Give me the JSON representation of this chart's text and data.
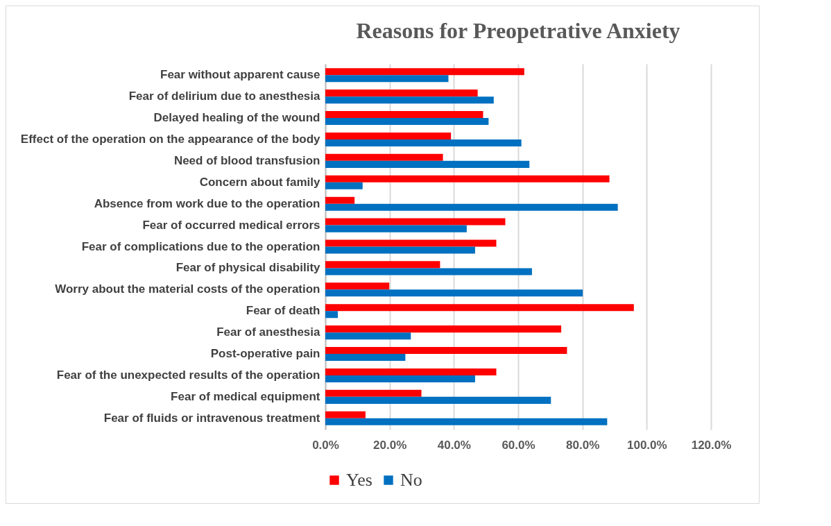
{
  "chart_data": {
    "type": "bar",
    "orientation": "horizontal",
    "title": "Reasons for Preopetrative Anxiety",
    "categories": [
      "Fear without apparent cause",
      "Fear of delirium due to anesthesia",
      "Delayed healing of the wound",
      "Effect of the operation on the appearance of the body",
      "Need of blood transfusion",
      "Concern about family",
      "Absence from work due to the operation",
      "Fear of occurred medical errors",
      "Fear of complications due to the operation",
      "Fear of physical disability",
      "Worry about the material costs of the operation",
      "Fear of death",
      "Fear of anesthesia",
      "Post-operative pain",
      "Fear of the unexpected results of the operation",
      "Fear of medical equipment",
      "Fear of fluids or intravenous treatment"
    ],
    "series": [
      {
        "name": "Yes",
        "color": "#ff0000",
        "values": [
          61.9,
          47.4,
          49.1,
          39.1,
          36.6,
          88.4,
          9.1,
          56.0,
          53.2,
          35.7,
          19.9,
          96.0,
          73.4,
          75.2,
          53.2,
          29.9,
          12.5
        ]
      },
      {
        "name": "No",
        "color": "#0070c0",
        "values": [
          38.3,
          52.4,
          50.8,
          61.0,
          63.5,
          11.6,
          91.0,
          44.0,
          46.6,
          64.3,
          80.1,
          3.9,
          26.6,
          24.9,
          46.6,
          70.2,
          87.7
        ]
      }
    ],
    "xlim": [
      0,
      120
    ],
    "xticks": [
      {
        "value": 0,
        "label": "0.0%"
      },
      {
        "value": 20,
        "label": "20.0%"
      },
      {
        "value": 40,
        "label": "40.0%"
      },
      {
        "value": 60,
        "label": "60.0%"
      },
      {
        "value": 80,
        "label": "80.0%"
      },
      {
        "value": 100,
        "label": "100.0%"
      },
      {
        "value": 120,
        "label": "120.0%"
      }
    ],
    "grid": "x",
    "legend": "bottom"
  }
}
